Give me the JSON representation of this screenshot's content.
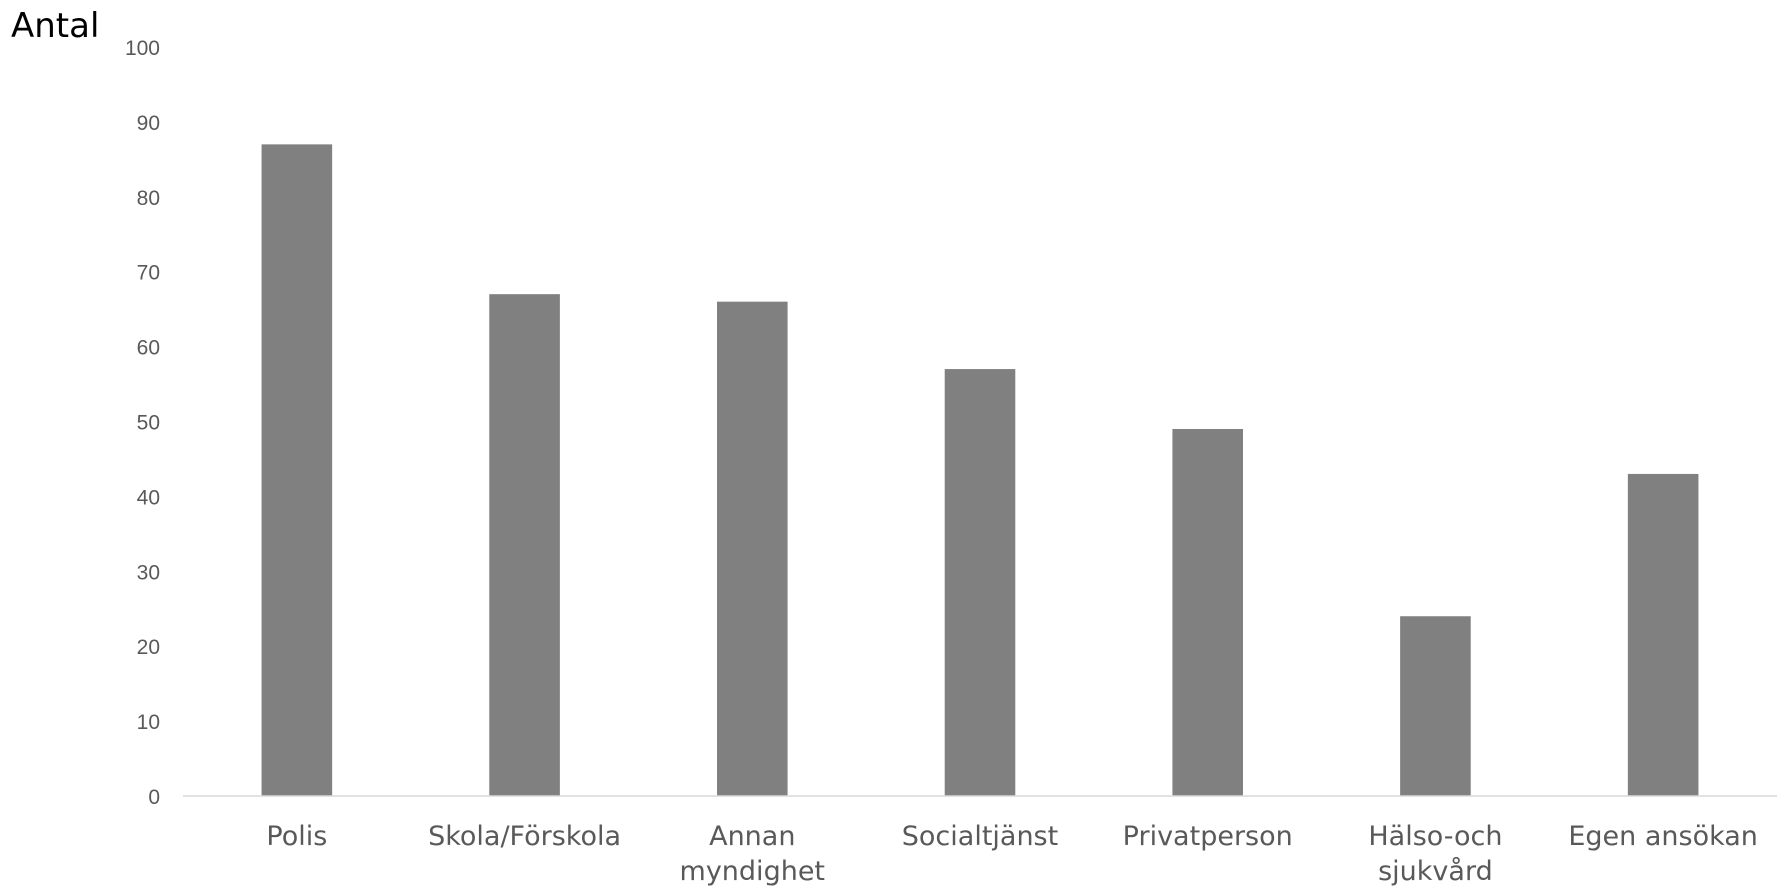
{
  "chart_data": {
    "type": "bar",
    "ylabel": "Antal",
    "xlabel": "",
    "ylim": [
      0,
      100
    ],
    "ytick_step": 10,
    "yticks": [
      "0",
      "10",
      "20",
      "30",
      "40",
      "50",
      "60",
      "70",
      "80",
      "90",
      "100"
    ],
    "categories": [
      [
        "Polis"
      ],
      [
        "Skola/Förskola"
      ],
      [
        "Annan",
        "myndighet"
      ],
      [
        "Socialtjänst"
      ],
      [
        "Privatperson"
      ],
      [
        "Hälso-och",
        "sjukvård"
      ],
      [
        "Egen ansökan"
      ]
    ],
    "values": [
      87,
      67,
      66,
      57,
      49,
      24,
      43
    ],
    "grid": false,
    "legend": "none",
    "colors": {
      "bar": "#808080",
      "axis": "#d9d9d9",
      "tick_text": "#595959",
      "ylabel_text": "#000000"
    }
  }
}
